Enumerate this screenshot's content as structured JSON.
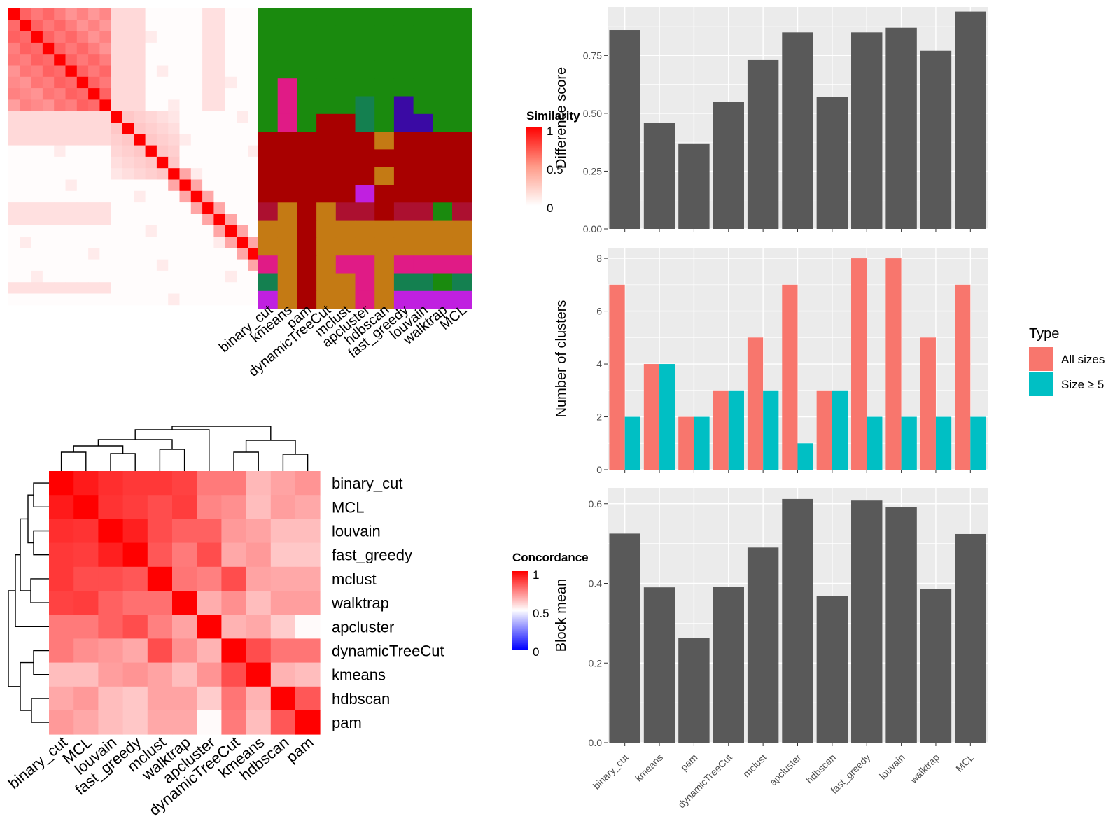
{
  "chart_data": [
    {
      "type": "heatmap",
      "panel": "similarity-heatmap",
      "legend_title": "Similarity",
      "legend_ticks": [
        "1",
        "0.5",
        "0"
      ],
      "methods": [
        "binary_cut",
        "kmeans",
        "pam",
        "dynamicTreeCut",
        "mclust",
        "apcluster",
        "hdbscan",
        "fast_greedy",
        "louvain",
        "walktrap",
        "MCL"
      ],
      "annotation_colors": {
        "green": "#1a8a0e",
        "darkred": "#a80000",
        "gold": "#c47a14",
        "pink": "#e01b86",
        "teal": "#148050",
        "purple": "#3a0aa4",
        "violet": "#c020e0",
        "crimson": "#ac1030"
      },
      "cluster_rows": [
        [
          "green",
          "green",
          "green",
          "green",
          "green",
          "green",
          "green",
          "green",
          "green",
          "green",
          "green"
        ],
        [
          "green",
          "green",
          "green",
          "green",
          "green",
          "green",
          "green",
          "green",
          "green",
          "green",
          "green"
        ],
        [
          "green",
          "green",
          "green",
          "green",
          "green",
          "green",
          "green",
          "green",
          "green",
          "green",
          "green"
        ],
        [
          "green",
          "green",
          "green",
          "green",
          "green",
          "green",
          "green",
          "green",
          "green",
          "green",
          "green"
        ],
        [
          "green",
          "pink",
          "green",
          "green",
          "green",
          "green",
          "green",
          "green",
          "green",
          "green",
          "green"
        ],
        [
          "green",
          "pink",
          "green",
          "green",
          "green",
          "teal",
          "green",
          "purple",
          "green",
          "green",
          "green"
        ],
        [
          "green",
          "pink",
          "green",
          "darkred",
          "darkred",
          "teal",
          "green",
          "purple",
          "purple",
          "green",
          "green"
        ],
        [
          "darkred",
          "darkred",
          "darkred",
          "darkred",
          "darkred",
          "darkred",
          "gold",
          "darkred",
          "darkred",
          "darkred",
          "darkred"
        ],
        [
          "darkred",
          "darkred",
          "darkred",
          "darkred",
          "darkred",
          "darkred",
          "darkred",
          "darkred",
          "darkred",
          "darkred",
          "darkred"
        ],
        [
          "darkred",
          "darkred",
          "darkred",
          "darkred",
          "darkred",
          "darkred",
          "gold",
          "darkred",
          "darkred",
          "darkred",
          "darkred"
        ],
        [
          "darkred",
          "darkred",
          "darkred",
          "darkred",
          "darkred",
          "violet",
          "darkred",
          "darkred",
          "darkred",
          "darkred",
          "darkred"
        ],
        [
          "crimson",
          "gold",
          "darkred",
          "gold",
          "crimson",
          "crimson",
          "darkred",
          "crimson",
          "crimson",
          "green",
          "crimson"
        ],
        [
          "gold",
          "gold",
          "darkred",
          "gold",
          "gold",
          "gold",
          "gold",
          "gold",
          "gold",
          "gold",
          "gold"
        ],
        [
          "gold",
          "gold",
          "darkred",
          "gold",
          "gold",
          "gold",
          "gold",
          "gold",
          "gold",
          "gold",
          "gold"
        ],
        [
          "pink",
          "gold",
          "darkred",
          "gold",
          "pink",
          "pink",
          "gold",
          "pink",
          "pink",
          "pink",
          "pink"
        ],
        [
          "teal",
          "gold",
          "darkred",
          "gold",
          "gold",
          "pink",
          "gold",
          "teal",
          "teal",
          "green",
          "teal"
        ],
        [
          "violet",
          "gold",
          "darkred",
          "gold",
          "gold",
          "pink",
          "gold",
          "violet",
          "violet",
          "violet",
          "violet"
        ]
      ]
    },
    {
      "type": "heatmap",
      "panel": "concordance-heatmap",
      "legend_title": "Concordance",
      "legend_ticks": [
        "1",
        "0.5",
        "0"
      ],
      "rows": [
        "binary_cut",
        "MCL",
        "louvain",
        "fast_greedy",
        "mclust",
        "walktrap",
        "apcluster",
        "dynamicTreeCut",
        "kmeans",
        "hdbscan",
        "pam"
      ],
      "cols": [
        "binary_cut",
        "MCL",
        "louvain",
        "fast_greedy",
        "mclust",
        "walktrap",
        "apcluster",
        "dynamicTreeCut",
        "kmeans",
        "hdbscan",
        "pam"
      ],
      "values": [
        [
          1.0,
          0.9,
          0.82,
          0.78,
          0.78,
          0.74,
          0.52,
          0.52,
          0.28,
          0.36,
          0.42
        ],
        [
          0.9,
          1.0,
          0.8,
          0.76,
          0.7,
          0.76,
          0.48,
          0.44,
          0.26,
          0.38,
          0.34
        ],
        [
          0.82,
          0.8,
          1.0,
          0.88,
          0.7,
          0.62,
          0.62,
          0.4,
          0.36,
          0.26,
          0.26
        ],
        [
          0.78,
          0.76,
          0.88,
          1.0,
          0.66,
          0.52,
          0.7,
          0.34,
          0.4,
          0.22,
          0.22
        ],
        [
          0.78,
          0.7,
          0.7,
          0.66,
          1.0,
          0.54,
          0.5,
          0.7,
          0.36,
          0.34,
          0.34
        ],
        [
          0.74,
          0.76,
          0.62,
          0.56,
          0.56,
          1.0,
          0.32,
          0.44,
          0.26,
          0.38,
          0.38
        ],
        [
          0.52,
          0.52,
          0.62,
          0.7,
          0.5,
          0.36,
          1.0,
          0.3,
          0.34,
          0.2,
          0.02
        ],
        [
          0.52,
          0.44,
          0.4,
          0.34,
          0.7,
          0.44,
          0.3,
          1.0,
          0.7,
          0.54,
          0.54
        ],
        [
          0.26,
          0.26,
          0.38,
          0.42,
          0.36,
          0.26,
          0.42,
          0.7,
          1.0,
          0.3,
          0.26
        ],
        [
          0.34,
          0.4,
          0.26,
          0.22,
          0.36,
          0.36,
          0.2,
          0.54,
          0.3,
          1.0,
          0.66
        ],
        [
          0.4,
          0.34,
          0.26,
          0.22,
          0.34,
          0.34,
          0.02,
          0.52,
          0.26,
          0.66,
          1.0
        ]
      ]
    },
    {
      "type": "bar",
      "panel": "difference-score",
      "categories": [
        "binary_cut",
        "kmeans",
        "pam",
        "dynamicTreeCut",
        "mclust",
        "apcluster",
        "hdbscan",
        "fast_greedy",
        "louvain",
        "walktrap",
        "MCL"
      ],
      "values": [
        0.86,
        0.46,
        0.37,
        0.55,
        0.73,
        0.85,
        0.57,
        0.85,
        0.87,
        0.77,
        0.94
      ],
      "ylabel": "Difference score",
      "ylim": [
        0,
        0.96
      ],
      "yticks": [
        "0.00",
        "0.25",
        "0.50",
        "0.75"
      ],
      "bar_color": "#595959"
    },
    {
      "type": "bar",
      "panel": "number-of-clusters",
      "categories": [
        "binary_cut",
        "kmeans",
        "pam",
        "dynamicTreeCut",
        "mclust",
        "apcluster",
        "hdbscan",
        "fast_greedy",
        "louvain",
        "walktrap",
        "MCL"
      ],
      "series": [
        {
          "name": "All sizes",
          "values": [
            7,
            4,
            2,
            3,
            5,
            7,
            3,
            8,
            8,
            5,
            7
          ],
          "color": "#f8766d"
        },
        {
          "name": "Size ≥ 5",
          "values": [
            2,
            4,
            2,
            3,
            3,
            1,
            3,
            2,
            2,
            2,
            2
          ],
          "color": "#00bfc4"
        }
      ],
      "ylabel": "Number of clusters",
      "ylim": [
        0,
        8.4
      ],
      "yticks": [
        "0",
        "2",
        "4",
        "6",
        "8"
      ],
      "legend_title": "Type"
    },
    {
      "type": "bar",
      "panel": "block-mean",
      "categories": [
        "binary_cut",
        "kmeans",
        "pam",
        "dynamicTreeCut",
        "mclust",
        "apcluster",
        "hdbscan",
        "fast_greedy",
        "louvain",
        "walktrap",
        "MCL"
      ],
      "values": [
        0.525,
        0.39,
        0.263,
        0.392,
        0.49,
        0.612,
        0.368,
        0.608,
        0.592,
        0.386,
        0.524
      ],
      "ylabel": "Block mean",
      "ylim": [
        0,
        0.64
      ],
      "yticks": [
        "0.0",
        "0.2",
        "0.4",
        "0.6"
      ],
      "bar_color": "#595959"
    }
  ]
}
